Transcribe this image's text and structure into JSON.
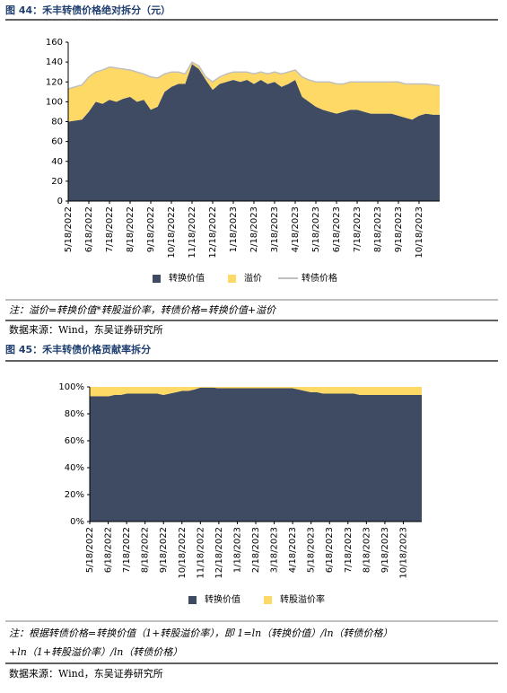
{
  "chart_data": [
    {
      "type": "area",
      "title": "图 44：禾丰转债价格绝对拆分（元）",
      "categories": [
        "5/18/2022",
        null,
        null,
        "6/18/2022",
        null,
        null,
        "7/18/2022",
        null,
        null,
        "8/18/2022",
        null,
        null,
        "9/18/2022",
        null,
        null,
        "10/18/2022",
        null,
        null,
        "11/18/2022",
        null,
        null,
        "12/18/2022",
        null,
        null,
        "1/18/2023",
        null,
        null,
        "2/18/2023",
        null,
        null,
        "3/18/2023",
        null,
        null,
        "4/18/2023",
        null,
        null,
        "5/18/2023",
        null,
        null,
        "6/18/2023",
        null,
        null,
        "7/18/2023",
        null,
        null,
        "8/18/2023",
        null,
        null,
        "9/18/2023",
        null,
        null,
        "10/18/2023",
        null,
        null,
        null
      ],
      "series": [
        {
          "name": "转换价值",
          "color": "#3e4b63",
          "stacked": true,
          "values": [
            80,
            81,
            82,
            90,
            100,
            98,
            102,
            100,
            103,
            105,
            100,
            102,
            92,
            95,
            110,
            115,
            118,
            118,
            138,
            133,
            122,
            112,
            118,
            120,
            122,
            120,
            122,
            118,
            122,
            118,
            120,
            115,
            118,
            122,
            105,
            100,
            95,
            92,
            90,
            88,
            90,
            92,
            92,
            90,
            88,
            88,
            88,
            88,
            86,
            84,
            82,
            86,
            88,
            87,
            87
          ]
        },
        {
          "name": "溢价",
          "color": "#ffd966",
          "stacked": true,
          "values": [
            33,
            34,
            35,
            35,
            30,
            34,
            33,
            34,
            30,
            27,
            30,
            26,
            33,
            29,
            18,
            15,
            12,
            10,
            2,
            3,
            3,
            8,
            7,
            8,
            8,
            10,
            8,
            10,
            8,
            10,
            10,
            13,
            12,
            10,
            20,
            22,
            25,
            28,
            30,
            30,
            28,
            28,
            28,
            30,
            32,
            32,
            32,
            32,
            34,
            34,
            36,
            32,
            30,
            30,
            29
          ]
        },
        {
          "name": "转债价格",
          "color": "#bfbfbf",
          "stacked": false,
          "values": [
            113,
            115,
            117,
            125,
            130,
            132,
            135,
            134,
            133,
            132,
            130,
            128,
            125,
            124,
            128,
            130,
            130,
            128,
            140,
            136,
            125,
            120,
            125,
            128,
            130,
            130,
            130,
            128,
            130,
            128,
            130,
            128,
            130,
            132,
            125,
            122,
            120,
            120,
            120,
            118,
            118,
            120,
            120,
            120,
            120,
            120,
            120,
            120,
            120,
            118,
            118,
            118,
            118,
            117,
            116
          ]
        }
      ],
      "ylim": [
        0,
        160
      ],
      "yticks": [
        0,
        20,
        40,
        60,
        80,
        100,
        120,
        140,
        160
      ],
      "note": [
        "注：溢价=转换价值*转股溢价率，转债价格=转换价值+溢价"
      ],
      "source": "数据来源：Wind，东吴证券研究所"
    },
    {
      "type": "area",
      "title": "图 45：禾丰转债价格贡献率拆分",
      "categories": [
        "5/18/2022",
        null,
        null,
        "6/18/2022",
        null,
        null,
        "7/18/2022",
        null,
        null,
        "8/18/2022",
        null,
        null,
        "9/18/2022",
        null,
        null,
        "10/18/2022",
        null,
        null,
        "11/18/2022",
        null,
        null,
        "12/18/2022",
        null,
        null,
        "1/18/2023",
        null,
        null,
        "2/18/2023",
        null,
        null,
        "3/18/2023",
        null,
        null,
        "4/18/2023",
        null,
        null,
        "5/18/2023",
        null,
        null,
        "6/18/2023",
        null,
        null,
        "7/18/2023",
        null,
        null,
        "8/18/2023",
        null,
        null,
        "9/18/2023",
        null,
        null,
        "10/18/2023",
        null,
        null,
        null
      ],
      "series": [
        {
          "name": "转换价值",
          "color": "#3e4b63",
          "stacked": true,
          "values": [
            93,
            93,
            93,
            93,
            94,
            94,
            95,
            95,
            95,
            95,
            95,
            95,
            94,
            95,
            96,
            97,
            97,
            98,
            99.5,
            99.5,
            99.5,
            99,
            99,
            99,
            99,
            99,
            99,
            99,
            99,
            99,
            99,
            99,
            99,
            99,
            98,
            97,
            96,
            96,
            95,
            95,
            95,
            95,
            95,
            95,
            94,
            94,
            94,
            94,
            94,
            94,
            94,
            94,
            94,
            94,
            94
          ]
        },
        {
          "name": "转股溢价率",
          "color": "#ffd966",
          "stacked": true,
          "values": [
            7,
            7,
            7,
            7,
            6,
            6,
            5,
            5,
            5,
            5,
            5,
            5,
            6,
            5,
            4,
            3,
            3,
            2,
            0.5,
            0.5,
            0.5,
            1,
            1,
            1,
            1,
            1,
            1,
            1,
            1,
            1,
            1,
            1,
            1,
            1,
            2,
            3,
            4,
            4,
            5,
            5,
            5,
            5,
            5,
            5,
            6,
            6,
            6,
            6,
            6,
            6,
            6,
            6,
            6,
            6,
            6
          ]
        }
      ],
      "ylim": [
        0,
        100
      ],
      "yticks": [
        {
          "value": 0,
          "label": "0%"
        },
        {
          "value": 20,
          "label": "20%"
        },
        {
          "value": 40,
          "label": "40%"
        },
        {
          "value": 60,
          "label": "60%"
        },
        {
          "value": 80,
          "label": "80%"
        },
        {
          "value": 100,
          "label": "100%"
        }
      ],
      "note": [
        "注：根据转债价格=转换价值（1+转股溢价率），即 1=ln（转换价值）/ln（转债价格）",
        "+ln（1+转股溢价率）/ln（转债价格）"
      ],
      "source": "数据来源：Wind，东吴证券研究所"
    }
  ]
}
